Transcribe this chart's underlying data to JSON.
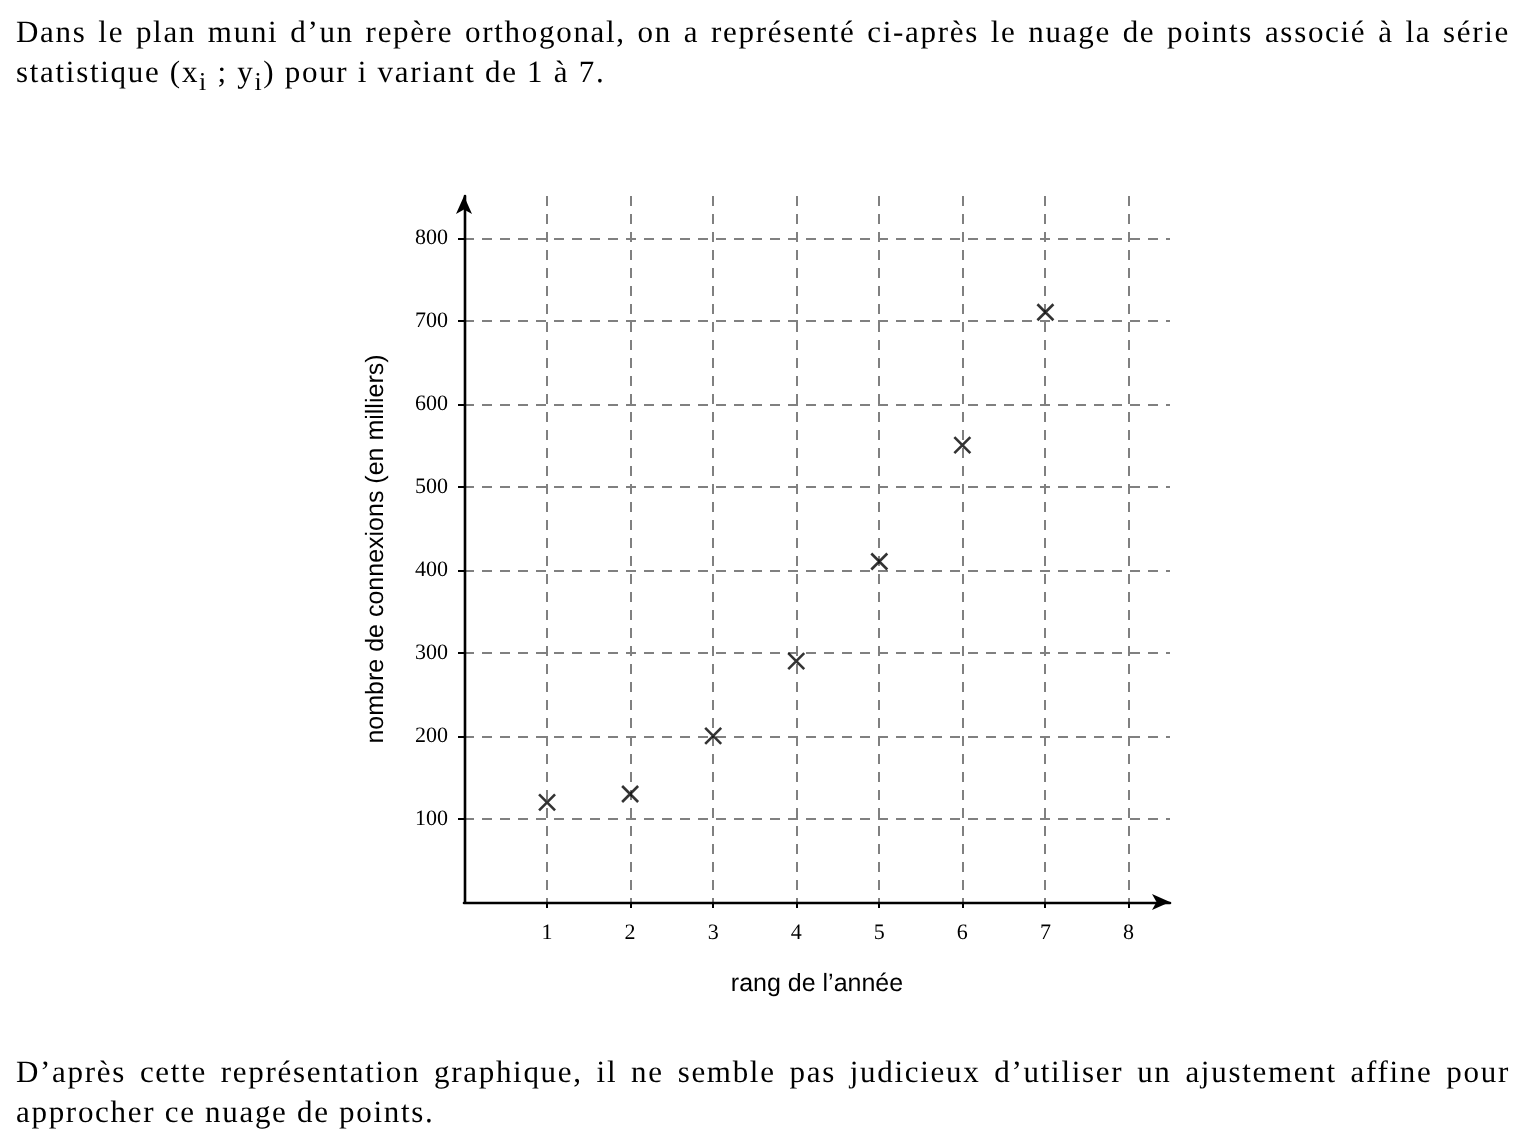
{
  "chart_data": {
    "type": "scatter",
    "title": "Dans le plan muni d’un repère orthogonal, on a représenté ci-après le nuage de points associé à la série statistique (x$_{i}$ ; y$_{i}$) pour i variant de 1 à 7.",
    "xlabel": "rang de l’année",
    "ylabel": "nombre de connexions (en milliers)",
    "x": [
      1,
      2,
      3,
      4,
      5,
      6,
      7
    ],
    "values": [
      120,
      130,
      200,
      290,
      410,
      550,
      710
    ],
    "color": "#000000",
    "xlim": [
      0,
      8.5
    ],
    "ylim": [
      0,
      850
    ],
    "xticks": [
      1,
      2,
      3,
      4,
      5,
      6,
      7,
      8
    ],
    "yticks": [
      100,
      200,
      300,
      400,
      500,
      600,
      700,
      800
    ],
    "grid": true,
    "marker": "cross",
    "annotations": [
      "D’après cette représentation graphique, il ne semble pas judicieux d’utiliser un ajustement affine pour approcher ce nuage de points."
    ]
  }
}
